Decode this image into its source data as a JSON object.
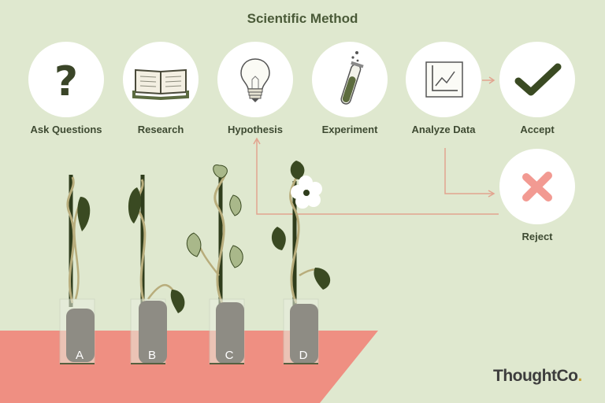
{
  "title": "Scientific Method",
  "steps": {
    "ask": "Ask Questions",
    "research": "Research",
    "hypothesis": "Hypothesis",
    "experiment": "Experiment",
    "analyze": "Analyze Data",
    "accept": "Accept",
    "reject": "Reject"
  },
  "tubes": [
    "A",
    "B",
    "C",
    "D"
  ],
  "brand": {
    "name": "ThoughtCo",
    "dot": "."
  },
  "colors": {
    "background": "#dfe8cf",
    "tabletop": "#ef8f82",
    "arrow": "#e2a48f",
    "reject_mark": "#f29a92",
    "accept_mark": "#3a4a22"
  },
  "icons": {
    "ask": "question-mark-icon",
    "research": "open-book-icon",
    "hypothesis": "light-bulb-icon",
    "experiment": "test-tube-icon",
    "analyze": "line-graph-icon",
    "accept": "checkmark-icon",
    "reject": "x-mark-icon"
  }
}
